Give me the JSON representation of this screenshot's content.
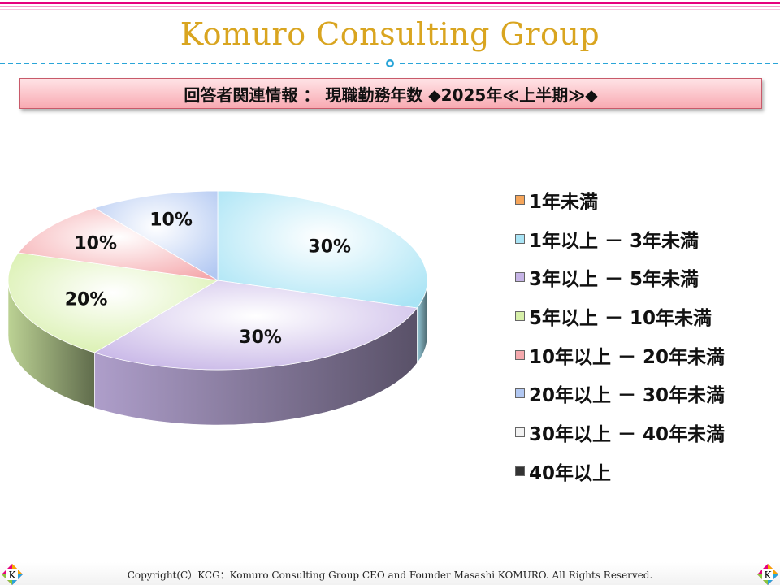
{
  "header": {
    "brand": "Komuro Consulting Group",
    "title": "回答者関連情報 ： 現職勤務年数 ◆2025年≪上半期≫◆"
  },
  "chart_data": {
    "type": "pie",
    "title": "",
    "legend_position": "right",
    "slices": [
      {
        "label": "1年未満",
        "value": 0,
        "pct_label": "",
        "color": "#f5a55a"
      },
      {
        "label": "1年以上 － 3年未満",
        "value": 30,
        "pct_label": "30%",
        "color": "#a9e4f5"
      },
      {
        "label": "3年以上 － 5年未満",
        "value": 30,
        "pct_label": "30%",
        "color": "#c6b4e6"
      },
      {
        "label": "5年以上 － 10年未満",
        "value": 20,
        "pct_label": "20%",
        "color": "#d6efa8"
      },
      {
        "label": "10年以上 － 20年未満",
        "value": 10,
        "pct_label": "10%",
        "color": "#f5a9ad"
      },
      {
        "label": "20年以上 － 30年未満",
        "value": 10,
        "pct_label": "10%",
        "color": "#b2c8f2"
      },
      {
        "label": "30年以上 － 40年未満",
        "value": 0,
        "pct_label": "",
        "color": "#f2f2f2"
      },
      {
        "label": "40年以上",
        "value": 0,
        "pct_label": "",
        "color": "#333333"
      }
    ]
  },
  "footer": {
    "copyright": "Copyright(C）KCG：Komuro Consulting Group CEO and Founder Masashi KOMURO. All Rights Reserved.",
    "logo_letter": "K"
  }
}
